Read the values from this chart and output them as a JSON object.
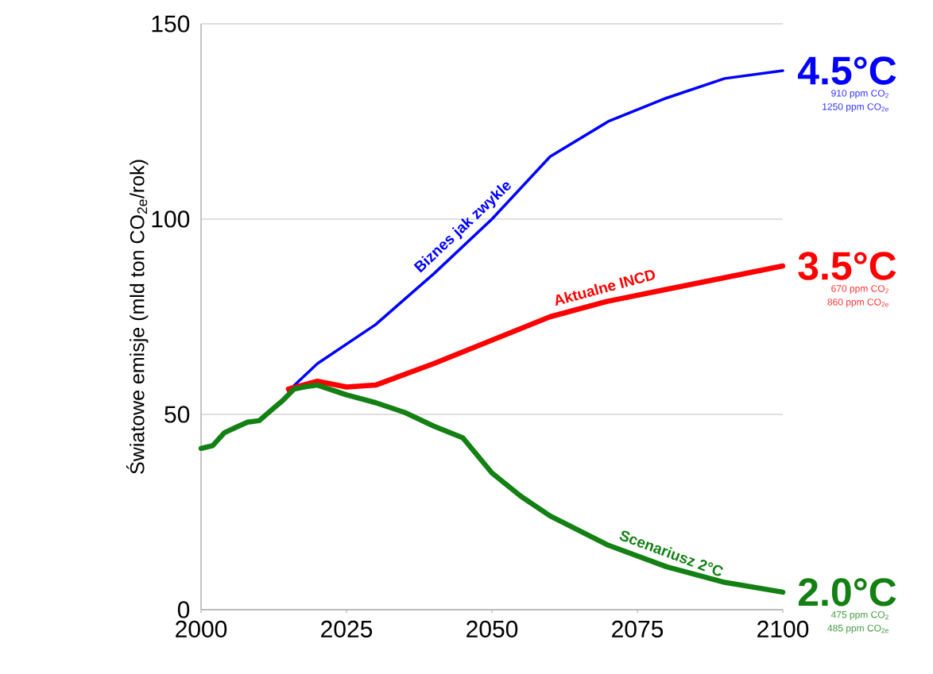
{
  "chart_data": {
    "type": "line",
    "ylabel": "Światowe emisje (mld ton CO$_{2e}$/rok)",
    "xlim": [
      2000,
      2100
    ],
    "ylim": [
      0,
      150
    ],
    "xticks": [
      2000,
      2025,
      2050,
      2075,
      2100
    ],
    "yticks": [
      0,
      50,
      100,
      150
    ],
    "grid": "y",
    "series": [
      {
        "color": "#0000ff",
        "x": [
          2015,
          2020,
          2030,
          2040,
          2050,
          2060,
          2070,
          2080,
          2090,
          2100
        ],
        "values": [
          56,
          63,
          73,
          86,
          100,
          116,
          125,
          131,
          136,
          138
        ]
      },
      {
        "color": "#ff0000",
        "x": [
          2015,
          2020,
          2025,
          2030,
          2040,
          2050,
          2060,
          2070,
          2080,
          2090,
          2100
        ],
        "values": [
          56.5,
          58.5,
          57,
          57.5,
          63,
          69,
          75,
          79,
          82,
          85,
          88
        ]
      },
      {
        "color": "#138013",
        "x": [
          2000,
          2002,
          2004,
          2006,
          2008,
          2010,
          2012,
          2014,
          2016,
          2018,
          2020,
          2025,
          2030,
          2035,
          2040,
          2045,
          2050,
          2055,
          2060,
          2070,
          2080,
          2090,
          2100
        ],
        "values": [
          41.3,
          42,
          45.3,
          46.7,
          48,
          48.4,
          51,
          53.5,
          56.5,
          57.1,
          57.5,
          55,
          53,
          50.5,
          47,
          44,
          35,
          29,
          24,
          16.5,
          11,
          7,
          4.5
        ]
      }
    ],
    "annotations": [
      {
        "text": "Biznes jak zwykle",
        "x": 2047,
        "y": 95
      },
      {
        "text": "Aktualne INCD",
        "x": 2070,
        "y": 79
      },
      {
        "text": "Scenariusz 2°C",
        "x": 2080,
        "y": 11
      },
      {
        "text": "4.5°C",
        "x": 2100,
        "y": 138
      },
      "910 ppm CO$_{2}$",
      "1250 ppm CO$_{2e}$",
      {
        "text": "3.5°C",
        "x": 2100,
        "y": 88
      },
      "670 ppm CO$_{2}$",
      "860 ppm CO$_{2e}$",
      {
        "text": "2.0°C",
        "x": 2100,
        "y": 4.5
      },
      "475 ppm CO$_{2}$",
      "485 ppm CO$_{2e}$"
    ]
  }
}
